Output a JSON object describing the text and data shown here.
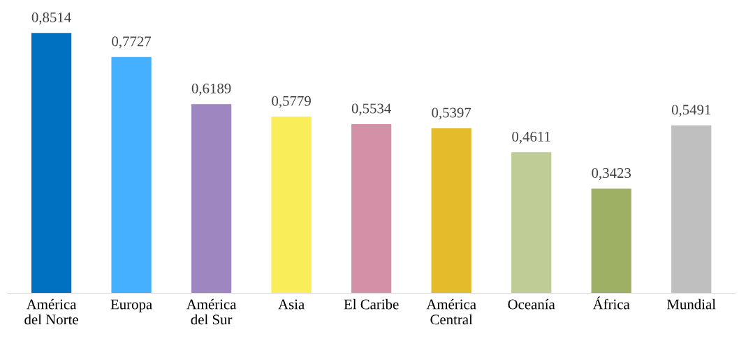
{
  "chart_data": {
    "type": "bar",
    "categories": [
      "América\ndel Norte",
      "Europa",
      "América\ndel Sur",
      "Asia",
      "El Caribe",
      "América\nCentral",
      "Oceanía",
      "África",
      "Mundial"
    ],
    "values": [
      0.8514,
      0.7727,
      0.6189,
      0.5779,
      0.5534,
      0.5397,
      0.4611,
      0.3423,
      0.5491
    ],
    "colors": [
      "#0070c0",
      "#44b0ff",
      "#9e86c0",
      "#f9ee5a",
      "#d291a6",
      "#e4bb2a",
      "#c0cc96",
      "#9eb063",
      "#bfbfbf"
    ],
    "value_labels": [
      "0,8514",
      "0,7727",
      "0,6189",
      "0,5779",
      "0,5534",
      "0,5397",
      "0,4611",
      "0,3423",
      "0,5491"
    ],
    "grid": false,
    "legend": false
  }
}
